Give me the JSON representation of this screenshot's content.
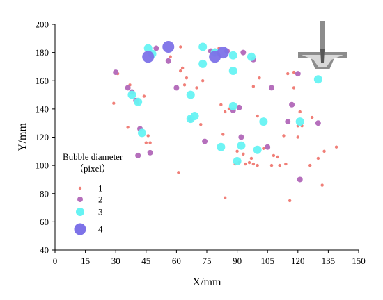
{
  "chart_data": {
    "type": "scatter",
    "xlabel": "X/mm",
    "ylabel": "Y/mm",
    "xlim": [
      0,
      150
    ],
    "ylim": [
      40,
      200
    ],
    "xticks": [
      "0",
      "15",
      "30",
      "45",
      "60",
      "75",
      "90",
      "105",
      "120",
      "135",
      "150"
    ],
    "yticks": [
      "40",
      "60",
      "80",
      "100",
      "120",
      "140",
      "160",
      "180",
      "200"
    ],
    "grid": false,
    "legend": {
      "title_line1": "Bubble diameter",
      "title_line2": "（pixel）",
      "placement": "lower-left",
      "entries": [
        "1",
        "2",
        "3",
        "4"
      ]
    },
    "colors": {
      "1": "#f07f78",
      "2": "#b56fbc",
      "3": "#66f3f3",
      "4": "#7d72e8",
      "impeller": "#8c8c8c"
    },
    "series": [
      {
        "name": "1",
        "points": [
          [
            29,
            144
          ],
          [
            31,
            165
          ],
          [
            36,
            127
          ],
          [
            37,
            157
          ],
          [
            41,
            144
          ],
          [
            44,
            149
          ],
          [
            46,
            121
          ],
          [
            47,
            116
          ],
          [
            45,
            116
          ],
          [
            57,
            177
          ],
          [
            61,
            95
          ],
          [
            62,
            167
          ],
          [
            62,
            184
          ],
          [
            63,
            169
          ],
          [
            64,
            157
          ],
          [
            65,
            162
          ],
          [
            70,
            155
          ],
          [
            72,
            129
          ],
          [
            73,
            160
          ],
          [
            79,
            179
          ],
          [
            81,
            183
          ],
          [
            82,
            143
          ],
          [
            83,
            122
          ],
          [
            84,
            138
          ],
          [
            84,
            77
          ],
          [
            86,
            140
          ],
          [
            89,
            101
          ],
          [
            90,
            110
          ],
          [
            91,
            102
          ],
          [
            93,
            108
          ],
          [
            94,
            101
          ],
          [
            96,
            102
          ],
          [
            97,
            105
          ],
          [
            98,
            156
          ],
          [
            98,
            101
          ],
          [
            100,
            100
          ],
          [
            100,
            135
          ],
          [
            101,
            162
          ],
          [
            103,
            112
          ],
          [
            107,
            100
          ],
          [
            108,
            107
          ],
          [
            110,
            106
          ],
          [
            111,
            100
          ],
          [
            113,
            121
          ],
          [
            114,
            101
          ],
          [
            115,
            165
          ],
          [
            116,
            75
          ],
          [
            118,
            155
          ],
          [
            118,
            166
          ],
          [
            120,
            128
          ],
          [
            120,
            120
          ],
          [
            121,
            138
          ],
          [
            122,
            128
          ],
          [
            126,
            100
          ],
          [
            127,
            134
          ],
          [
            130,
            105
          ],
          [
            132,
            86
          ],
          [
            133,
            110
          ],
          [
            139,
            113
          ]
        ]
      },
      {
        "name": "2",
        "points": [
          [
            30,
            166
          ],
          [
            36,
            155
          ],
          [
            38,
            152
          ],
          [
            40,
            146
          ],
          [
            41,
            107
          ],
          [
            42,
            126
          ],
          [
            47,
            109
          ],
          [
            50,
            183
          ],
          [
            56,
            174
          ],
          [
            60,
            155
          ],
          [
            67,
            133
          ],
          [
            74,
            117
          ],
          [
            77,
            181
          ],
          [
            79,
            181
          ],
          [
            85,
            181
          ],
          [
            88,
            139
          ],
          [
            91,
            141
          ],
          [
            92,
            120
          ],
          [
            93,
            180
          ],
          [
            98,
            175
          ],
          [
            105,
            113
          ],
          [
            107,
            155
          ],
          [
            115,
            131
          ],
          [
            117,
            143
          ],
          [
            120,
            165
          ],
          [
            121,
            90
          ],
          [
            130,
            130
          ]
        ]
      },
      {
        "name": "3",
        "points": [
          [
            38,
            150
          ],
          [
            41,
            145
          ],
          [
            43,
            123
          ],
          [
            46,
            183
          ],
          [
            48,
            179
          ],
          [
            67,
            133
          ],
          [
            67,
            150
          ],
          [
            69,
            135
          ],
          [
            73,
            172
          ],
          [
            73,
            184
          ],
          [
            79,
            180
          ],
          [
            82,
            113
          ],
          [
            88,
            167
          ],
          [
            88,
            142
          ],
          [
            88,
            178
          ],
          [
            90,
            103
          ],
          [
            92,
            114
          ],
          [
            97,
            177
          ],
          [
            100,
            111
          ],
          [
            103,
            131
          ],
          [
            121,
            131
          ],
          [
            130,
            161
          ]
        ]
      },
      {
        "name": "4",
        "points": [
          [
            46,
            177
          ],
          [
            56,
            184
          ],
          [
            79,
            177
          ],
          [
            83,
            180
          ]
        ]
      }
    ]
  }
}
